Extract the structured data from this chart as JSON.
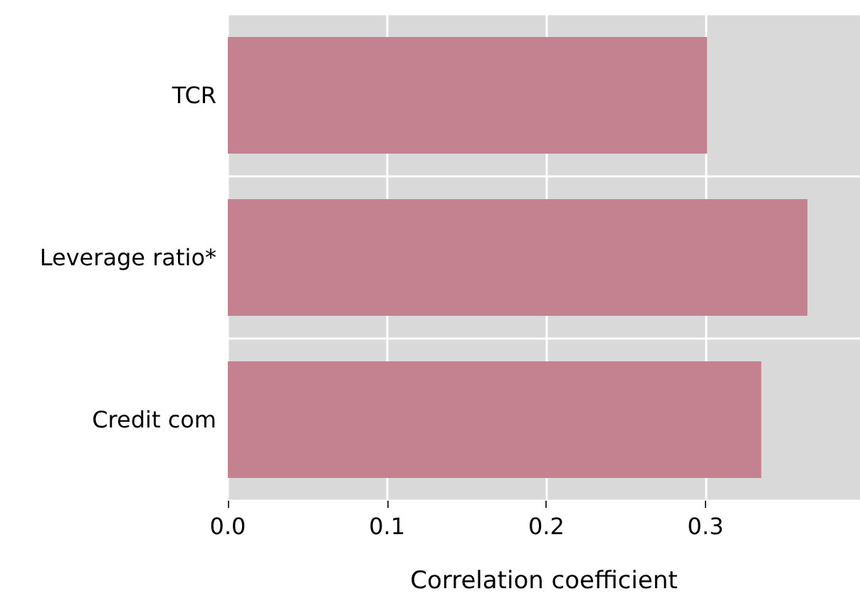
{
  "chart_data": {
    "type": "bar",
    "orientation": "horizontal",
    "xlabel": "Correlation coefficient",
    "categories": [
      "TCR",
      "Leverage ratio*",
      "Credit com"
    ],
    "values": [
      0.301,
      0.364,
      0.335
    ],
    "color": "#c48190",
    "xlim": [
      0,
      0.397
    ],
    "xticks": [
      {
        "value": 0,
        "label": "0.0"
      },
      0.1,
      0.2,
      0.3
    ],
    "grid": true
  }
}
